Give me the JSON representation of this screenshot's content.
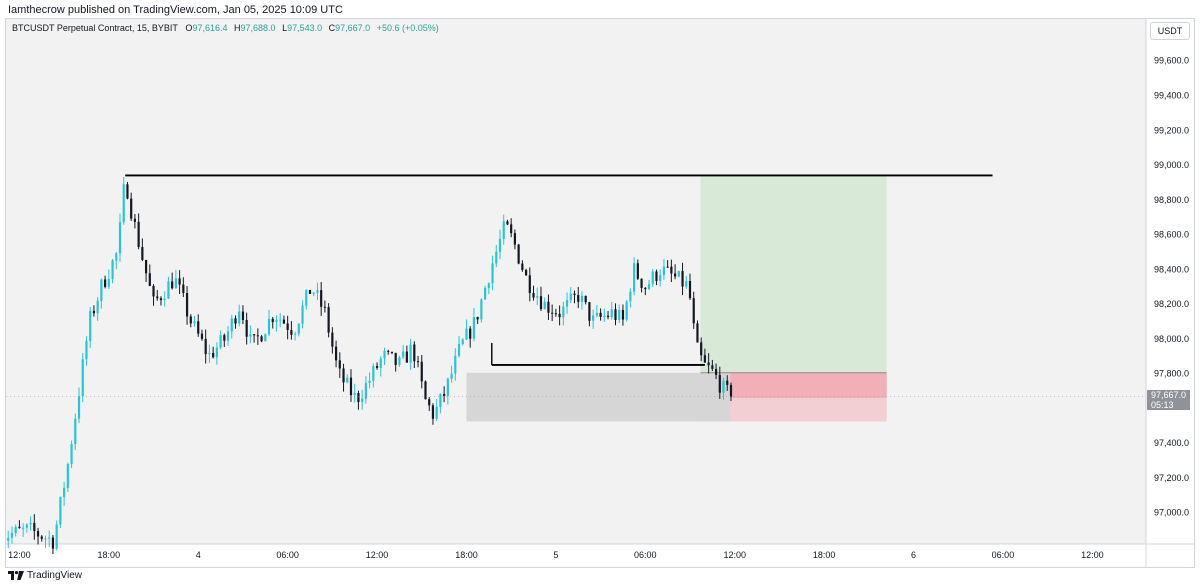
{
  "header": {
    "published_line": "Iamthecrow published on TradingView.com, Jan 05, 2025 10:09 UTC"
  },
  "legend": {
    "symbol": "BTCUSDT Perpetual Contract, 15, BYBIT",
    "open_label": "O",
    "open_value": "97,616.4",
    "high_label": "H",
    "high_value": "97,688.0",
    "low_label": "L",
    "low_value": "97,543.0",
    "close_label": "C",
    "close_value": "97,667.0",
    "change": "+50.6 (+0.05%)"
  },
  "currency_button": "USDT",
  "last_price": {
    "value": "97,667.0",
    "countdown": "05:13"
  },
  "footer": {
    "brand": "TradingView"
  },
  "colors": {
    "up": "#26c6da",
    "down": "#131722",
    "background": "#f2f2f2",
    "target_zone": "#d8e9d8",
    "stop_zone": "#f0a6ae",
    "stop_zone_light": "#f2cfd3",
    "demand_zone": "#d6d6d6",
    "level_line": "#000000"
  },
  "chart_data": {
    "type": "candlestick",
    "symbol": "BTCUSDT",
    "exchange": "BYBIT",
    "interval": "15",
    "y_ticks": [
      "99,600.0",
      "99,400.0",
      "99,200.0",
      "99,000.0",
      "98,800.0",
      "98,600.0",
      "98,400.0",
      "98,200.0",
      "98,000.0",
      "97,800.0",
      "97,400.0",
      "97,200.0",
      "97,000.0"
    ],
    "y_tick_values": [
      99600,
      99400,
      99200,
      99000,
      98800,
      98600,
      98400,
      98200,
      98000,
      97800,
      97400,
      97200,
      97000
    ],
    "ylim": [
      96820,
      99840
    ],
    "x_ticks": [
      "12:00",
      "18:00",
      "4",
      "06:00",
      "12:00",
      "18:00",
      "5",
      "06:00",
      "12:00",
      "18:00",
      "6",
      "06:00",
      "12:00"
    ],
    "x_tick_hours": [
      12,
      18,
      24,
      30,
      36,
      42,
      48,
      54,
      60,
      66,
      72,
      78,
      84
    ],
    "xlim": [
      11.1,
      87.6
    ],
    "last_close": 97667.0,
    "key_points": [
      {
        "t": 10.5,
        "price": 96860
      },
      {
        "t": 12.6,
        "price": 96900
      },
      {
        "t": 14.3,
        "price": 96840
      },
      {
        "t": 15.2,
        "price": 97250
      },
      {
        "t": 16.0,
        "price": 97700
      },
      {
        "t": 16.7,
        "price": 98100
      },
      {
        "t": 17.5,
        "price": 98300
      },
      {
        "t": 18.6,
        "price": 98500
      },
      {
        "t": 19.1,
        "price": 98930
      },
      {
        "t": 19.6,
        "price": 98700
      },
      {
        "t": 20.3,
        "price": 98450
      },
      {
        "t": 21.0,
        "price": 98200
      },
      {
        "t": 22.4,
        "price": 98350
      },
      {
        "t": 23.5,
        "price": 98100
      },
      {
        "t": 24.7,
        "price": 97900
      },
      {
        "t": 25.8,
        "price": 98000
      },
      {
        "t": 26.8,
        "price": 98200
      },
      {
        "t": 27.6,
        "price": 97950
      },
      {
        "t": 29.1,
        "price": 98150
      },
      {
        "t": 30.4,
        "price": 98050
      },
      {
        "t": 31.6,
        "price": 98300
      },
      {
        "t": 32.5,
        "price": 98150
      },
      {
        "t": 33.4,
        "price": 97800
      },
      {
        "t": 34.6,
        "price": 97650
      },
      {
        "t": 35.4,
        "price": 97750
      },
      {
        "t": 36.4,
        "price": 97900
      },
      {
        "t": 37.5,
        "price": 97850
      },
      {
        "t": 38.4,
        "price": 97950
      },
      {
        "t": 39.2,
        "price": 97650
      },
      {
        "t": 39.8,
        "price": 97560
      },
      {
        "t": 40.6,
        "price": 97700
      },
      {
        "t": 41.6,
        "price": 97950
      },
      {
        "t": 42.6,
        "price": 98100
      },
      {
        "t": 43.6,
        "price": 98400
      },
      {
        "t": 44.6,
        "price": 98650
      },
      {
        "t": 45.2,
        "price": 98550
      },
      {
        "t": 46.0,
        "price": 98350
      },
      {
        "t": 47.2,
        "price": 98200
      },
      {
        "t": 48.3,
        "price": 98150
      },
      {
        "t": 49.5,
        "price": 98250
      },
      {
        "t": 50.5,
        "price": 98100
      },
      {
        "t": 51.8,
        "price": 98150
      },
      {
        "t": 52.5,
        "price": 98100
      },
      {
        "t": 53.2,
        "price": 98400
      },
      {
        "t": 54.0,
        "price": 98300
      },
      {
        "t": 55.0,
        "price": 98400
      },
      {
        "t": 56.0,
        "price": 98350
      },
      {
        "t": 56.9,
        "price": 98300
      },
      {
        "t": 57.4,
        "price": 97950
      },
      {
        "t": 57.9,
        "price": 97850
      },
      {
        "t": 58.6,
        "price": 97800
      },
      {
        "t": 59.3,
        "price": 97700
      },
      {
        "t": 59.8,
        "price": 97667
      }
    ],
    "annotations": {
      "resistance_line": {
        "price": 98940,
        "t_start": 19.1,
        "t_end": 77.3
      },
      "support_line": {
        "price": 97850,
        "t_start": 43.7,
        "t_end": 58.0
      },
      "demand_zone": {
        "t_start": 42.0,
        "t_end": 59.7,
        "price_top": 97805,
        "price_bottom": 97525
      },
      "position_target": {
        "t_start": 57.7,
        "t_end": 70.2,
        "price_top": 98940,
        "price_bottom": 97805
      },
      "position_stop": {
        "t_start": 57.7,
        "t_end": 70.2,
        "price_top": 97805,
        "price_bottom": 97525
      }
    }
  }
}
